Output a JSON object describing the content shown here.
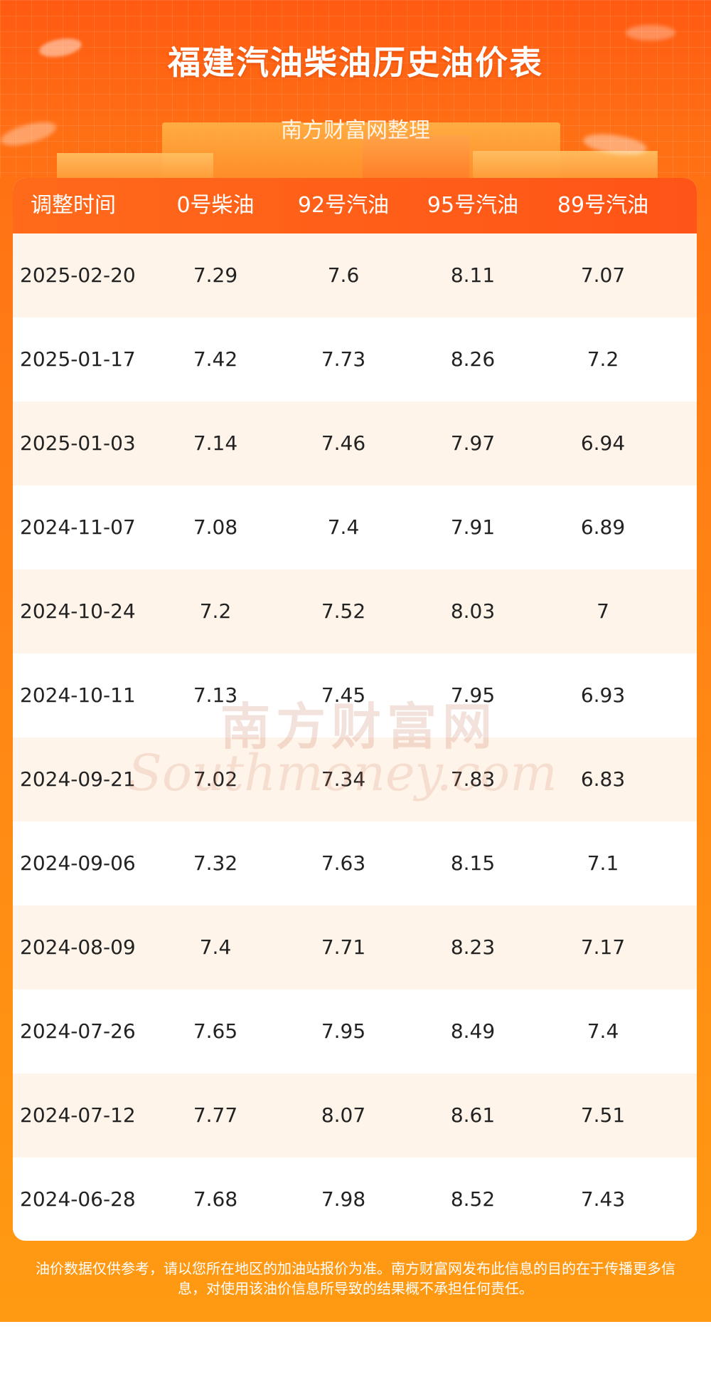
{
  "header": {
    "title": "福建汽油柴油历史油价表",
    "subtitle": "南方财富网整理"
  },
  "table": {
    "columns": [
      "调整时间",
      "0号柴油",
      "92号汽油",
      "95号汽油",
      "89号汽油"
    ],
    "rows": [
      [
        "2025-02-20",
        "7.29",
        "7.6",
        "8.11",
        "7.07"
      ],
      [
        "2025-01-17",
        "7.42",
        "7.73",
        "8.26",
        "7.2"
      ],
      [
        "2025-01-03",
        "7.14",
        "7.46",
        "7.97",
        "6.94"
      ],
      [
        "2024-11-07",
        "7.08",
        "7.4",
        "7.91",
        "6.89"
      ],
      [
        "2024-10-24",
        "7.2",
        "7.52",
        "8.03",
        "7"
      ],
      [
        "2024-10-11",
        "7.13",
        "7.45",
        "7.95",
        "6.93"
      ],
      [
        "2024-09-21",
        "7.02",
        "7.34",
        "7.83",
        "6.83"
      ],
      [
        "2024-09-06",
        "7.32",
        "7.63",
        "8.15",
        "7.1"
      ],
      [
        "2024-08-09",
        "7.4",
        "7.71",
        "8.23",
        "7.17"
      ],
      [
        "2024-07-26",
        "7.65",
        "7.95",
        "8.49",
        "7.4"
      ],
      [
        "2024-07-12",
        "7.77",
        "8.07",
        "8.61",
        "7.51"
      ],
      [
        "2024-06-28",
        "7.68",
        "7.98",
        "8.52",
        "7.43"
      ]
    ]
  },
  "watermark": {
    "cn": "南方财富网",
    "en": "Southmoney.com"
  },
  "footer": {
    "line1": "油价数据仅供参考，请以您所在地区的加油站报价为准。南方财富网发布此信息的目的在于传播更多信",
    "line2": "息，对使用该油价信息所导致的结果概不承担任何责任。"
  },
  "colors": {
    "brand_orange": "#ff6a1a",
    "row_tint": "#fff4ea"
  }
}
